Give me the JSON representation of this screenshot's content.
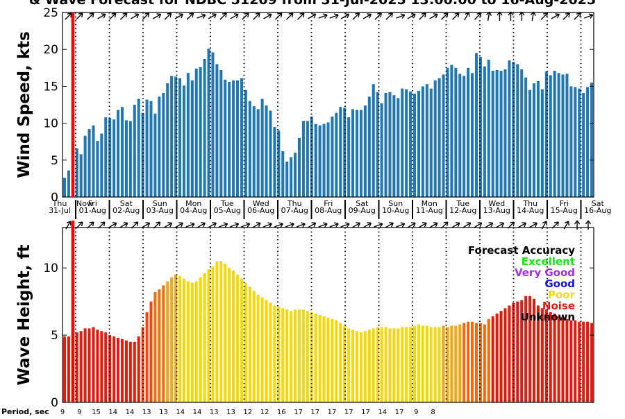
{
  "title": "& Wave Forecast for NDBC 51209 from 31-Jul-2025 13:00:00 to 16-Aug-2025",
  "chart_data": [
    {
      "type": "bar",
      "ylabel": "Wind Speed, kts",
      "ylim": [
        0,
        25
      ],
      "yticks": [
        0,
        5,
        10,
        15,
        20,
        25
      ],
      "bar_color": "#1f77b4",
      "time_range": [
        "31-Jul-2025 13:00:00",
        "16-Aug-2025"
      ],
      "values": [
        2.6,
        3.6,
        0,
        6.6,
        5.8,
        8.3,
        9.2,
        9.7,
        7.6,
        8.6,
        10.8,
        10.7,
        10.5,
        11.8,
        12.2,
        10.4,
        10.3,
        12.5,
        13.3,
        11.4,
        13.2,
        13.0,
        11.3,
        13.6,
        14.1,
        15.4,
        16.4,
        16.3,
        16.1,
        15.1,
        16.8,
        15.8,
        17.4,
        17.6,
        18.7,
        20.1,
        19.6,
        18.0,
        17.2,
        15.9,
        15.6,
        15.8,
        15.8,
        16.1,
        14.5,
        13.0,
        12.3,
        11.9,
        13.3,
        12.4,
        11.7,
        9.5,
        9.0,
        6.2,
        4.8,
        5.4,
        6.0,
        8.0,
        10.3,
        10.3,
        10.9,
        9.9,
        9.7,
        9.9,
        10.1,
        10.9,
        11.4,
        12.2,
        12.1,
        10.8,
        11.9,
        11.8,
        11.8,
        12.4,
        13.6,
        15.3,
        14.2,
        12.7,
        14.1,
        14.2,
        13.8,
        13.4,
        14.7,
        14.6,
        14.3,
        14.0,
        14.4,
        15.0,
        15.3,
        14.7,
        15.8,
        16.1,
        16.6,
        17.5,
        17.9,
        17.5,
        16.7,
        16.4,
        17.5,
        16.8,
        19.5,
        19.0,
        17.7,
        18.6,
        17.1,
        17.2,
        17.1,
        17.3,
        18.5,
        18.3,
        18.0,
        17.3,
        16.2,
        14.5,
        15.4,
        15.7,
        14.6,
        17.0,
        16.5,
        17.1,
        16.8,
        16.6,
        16.7,
        15.0,
        14.9,
        14.7,
        14.1,
        14.9,
        15.5
      ]
    },
    {
      "type": "bar",
      "ylabel": "Wave Height, ft",
      "ylim": [
        0,
        13
      ],
      "yticks": [
        0,
        5,
        10
      ],
      "values": [
        4.9,
        4.9,
        0,
        5.2,
        5.3,
        5.5,
        5.5,
        5.6,
        5.4,
        5.3,
        5.2,
        5.0,
        4.9,
        4.8,
        4.7,
        4.6,
        4.5,
        4.5,
        4.9,
        5.6,
        6.7,
        7.5,
        8.2,
        8.4,
        8.7,
        9.0,
        9.3,
        9.5,
        9.4,
        9.2,
        9.0,
        8.9,
        9.0,
        9.3,
        9.6,
        9.9,
        10.1,
        10.5,
        10.5,
        10.3,
        10.0,
        9.8,
        9.5,
        9.2,
        8.9,
        8.6,
        8.3,
        8.0,
        7.8,
        7.6,
        7.4,
        7.2,
        7.1,
        7.0,
        6.9,
        6.8,
        6.9,
        6.9,
        6.9,
        6.8,
        6.7,
        6.6,
        6.5,
        6.4,
        6.3,
        6.2,
        6.1,
        5.9,
        5.7,
        5.5,
        5.4,
        5.3,
        5.2,
        5.3,
        5.4,
        5.5,
        5.6,
        5.6,
        5.6,
        5.5,
        5.5,
        5.5,
        5.6,
        5.6,
        5.6,
        5.7,
        5.8,
        5.7,
        5.7,
        5.6,
        5.6,
        5.6,
        5.7,
        5.6,
        5.7,
        5.7,
        5.8,
        5.9,
        6.0,
        6.0,
        5.9,
        5.9,
        5.8,
        6.2,
        6.4,
        6.6,
        6.8,
        7.0,
        7.2,
        7.4,
        7.5,
        7.6,
        7.9,
        7.9,
        7.7,
        7.2,
        7.0,
        6.9,
        6.7,
        6.6,
        6.4,
        6.3,
        6.2,
        6.1,
        6.1,
        6.0,
        6.0,
        6.0,
        5.9
      ],
      "color_ramp": [
        {
          "from": 0,
          "to": 19,
          "color": "#e21b0d"
        },
        {
          "from": 19,
          "to": 22,
          "color": "#ee4a10"
        },
        {
          "from": 22,
          "to": 25,
          "color": "#f0720a"
        },
        {
          "from": 25,
          "to": 28,
          "color": "#f7a80a"
        },
        {
          "from": 28,
          "to": 92,
          "color": "#f5d80b"
        },
        {
          "from": 92,
          "to": 97,
          "color": "#f2a60d"
        },
        {
          "from": 97,
          "to": 104,
          "color": "#f0690e"
        },
        {
          "from": 104,
          "to": 134,
          "color": "#e21b0d"
        }
      ]
    }
  ],
  "day_labels": [
    {
      "day": "Thu",
      "date": "31-Jul"
    },
    {
      "day": "Fri",
      "date": "01-Aug"
    },
    {
      "day": "Sat",
      "date": "02-Aug"
    },
    {
      "day": "Sun",
      "date": "03-Aug"
    },
    {
      "day": "Mon",
      "date": "04-Aug"
    },
    {
      "day": "Tue",
      "date": "05-Aug"
    },
    {
      "day": "Wed",
      "date": "06-Aug"
    },
    {
      "day": "Thu",
      "date": "07-Aug"
    },
    {
      "day": "Fri",
      "date": "08-Aug"
    },
    {
      "day": "Sat",
      "date": "09-Aug"
    },
    {
      "day": "Sun",
      "date": "10-Aug"
    },
    {
      "day": "Mon",
      "date": "11-Aug"
    },
    {
      "day": "Tue",
      "date": "12-Aug"
    },
    {
      "day": "Wed",
      "date": "13-Aug"
    },
    {
      "day": "Thu",
      "date": "14-Aug"
    },
    {
      "day": "Fri",
      "date": "15-Aug"
    },
    {
      "day": "Sat",
      "date": "16-Aug"
    }
  ],
  "now_label": "Now",
  "now_line_color": "#ff0000",
  "wind_direction_arrows_deg": [
    135,
    135,
    135,
    150,
    135,
    135,
    150,
    135,
    150,
    135,
    150,
    135,
    160,
    150,
    135,
    150,
    135,
    135,
    150,
    135,
    135,
    135,
    150,
    160,
    160,
    150,
    135,
    150,
    135,
    135,
    160,
    150,
    135,
    150,
    135,
    135,
    120,
    135,
    100,
    90,
    90,
    90,
    100,
    135,
    150,
    135,
    135,
    160
  ],
  "wave_direction_arrows_deg": [
    120,
    135,
    135,
    135,
    150,
    150,
    135,
    150,
    135,
    150,
    150,
    160,
    150,
    150,
    160,
    160,
    160,
    150,
    160,
    160,
    160,
    160,
    150,
    160,
    160,
    160,
    150,
    150,
    160,
    150,
    160,
    150,
    150,
    150,
    135,
    150,
    150,
    150,
    150,
    150,
    135,
    150,
    150,
    120,
    135,
    120,
    90,
    90
  ],
  "legend": {
    "title": "Forecast Accuracy",
    "entries": [
      {
        "label": "Excellent",
        "color": "#19e619"
      },
      {
        "label": "Very Good",
        "color": "#9e30e6"
      },
      {
        "label": "Good",
        "color": "#1414e6"
      },
      {
        "label": "Poor",
        "color": "#f5d80b"
      },
      {
        "label": "Noise",
        "color": "#e21b0d"
      },
      {
        "label": "Unknown",
        "color": "#000000"
      }
    ]
  },
  "period_title": "Period, sec",
  "periods": [
    "9",
    "9",
    "15",
    "14",
    "14",
    "13",
    "13",
    "14",
    "14",
    "13",
    "13",
    "12",
    "12",
    "16",
    "17",
    "17",
    "17",
    "17",
    "17",
    "14",
    "17",
    "9",
    "8"
  ]
}
